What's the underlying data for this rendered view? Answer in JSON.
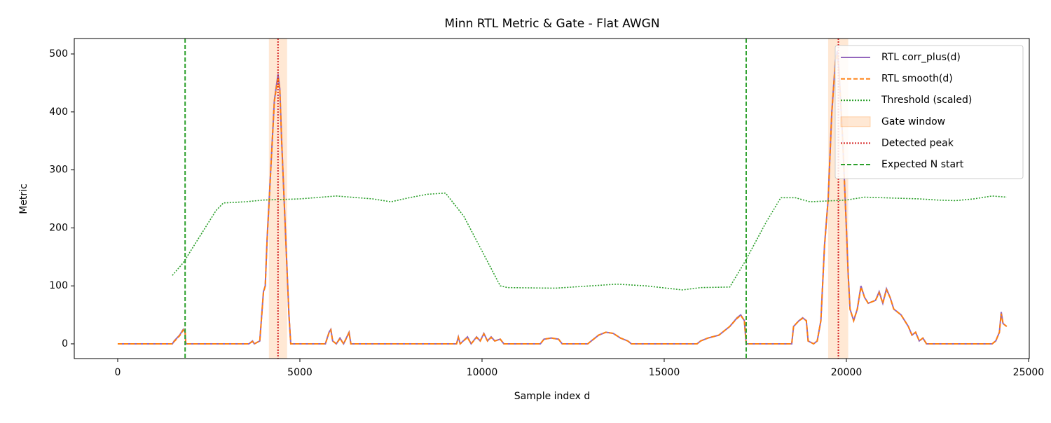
{
  "chart_data": {
    "type": "line",
    "title": "Minn RTL Metric & Gate - Flat AWGN",
    "x_label": "Sample index d",
    "y_label": "Metric",
    "xlim": [
      -1192,
      25020
    ],
    "ylim": [
      -25.4,
      526.6
    ],
    "xticks": [
      0,
      5000,
      10000,
      15000,
      20000,
      25000
    ],
    "yticks": [
      0,
      100,
      200,
      300,
      400,
      500
    ],
    "legend": "upper right",
    "series": [
      {
        "name": "RTL corr_plus(d)",
        "kind": "line",
        "color": "#9467bd",
        "dash": "solid",
        "x": [
          0,
          1500,
          1550,
          1700,
          1800,
          1850,
          1870,
          3600,
          3700,
          3750,
          3900,
          4000,
          4050,
          4100,
          4200,
          4300,
          4400,
          4450,
          4500,
          4600,
          4700,
          4750,
          5700,
          5800,
          5850,
          5900,
          6000,
          6100,
          6200,
          6350,
          6400,
          9300,
          9350,
          9400,
          9600,
          9700,
          9850,
          9950,
          10050,
          10150,
          10250,
          10350,
          10500,
          10600,
          11600,
          11700,
          11900,
          12100,
          12200,
          12900,
          13000,
          13200,
          13400,
          13600,
          13800,
          14000,
          14100,
          15900,
          16000,
          16200,
          16500,
          16800,
          17000,
          17100,
          17200,
          17250,
          18500,
          18550,
          18700,
          18800,
          18900,
          18950,
          19100,
          19200,
          19300,
          19400,
          19500,
          19600,
          19700,
          19750,
          19800,
          19900,
          20000,
          20050,
          20100,
          20200,
          20300,
          20400,
          20500,
          20600,
          20800,
          20900,
          21000,
          21100,
          21200,
          21300,
          21500,
          21700,
          21800,
          21900,
          22000,
          22100,
          22200,
          24000,
          24100,
          24200,
          24250,
          24300,
          24400
        ],
        "values": [
          0,
          0,
          5,
          15,
          25,
          20,
          0,
          0,
          5,
          0,
          5,
          90,
          100,
          180,
          300,
          420,
          465,
          440,
          350,
          200,
          50,
          0,
          0,
          20,
          25,
          5,
          0,
          10,
          0,
          20,
          0,
          0,
          12,
          0,
          12,
          0,
          12,
          5,
          18,
          5,
          12,
          5,
          8,
          0,
          0,
          8,
          10,
          8,
          0,
          0,
          5,
          15,
          20,
          18,
          10,
          5,
          0,
          0,
          5,
          10,
          15,
          30,
          45,
          50,
          40,
          0,
          0,
          30,
          40,
          45,
          40,
          5,
          0,
          5,
          40,
          170,
          250,
          400,
          490,
          505,
          470,
          350,
          200,
          120,
          60,
          40,
          60,
          100,
          80,
          70,
          75,
          90,
          70,
          95,
          80,
          60,
          50,
          30,
          15,
          20,
          5,
          10,
          0,
          0,
          5,
          20,
          55,
          35,
          30
        ]
      },
      {
        "name": "RTL smooth(d)",
        "kind": "line",
        "color": "#ff7f0e",
        "dash": "dashed",
        "x": [
          0,
          1500,
          1550,
          1700,
          1800,
          1850,
          1870,
          3600,
          3700,
          3750,
          3900,
          4000,
          4050,
          4100,
          4200,
          4300,
          4400,
          4450,
          4500,
          4600,
          4700,
          4750,
          5700,
          5800,
          5850,
          5900,
          6000,
          6100,
          6200,
          6350,
          6400,
          9300,
          9350,
          9400,
          9600,
          9700,
          9850,
          9950,
          10050,
          10150,
          10250,
          10350,
          10500,
          10600,
          11600,
          11700,
          11900,
          12100,
          12200,
          12900,
          13000,
          13200,
          13400,
          13600,
          13800,
          14000,
          14100,
          15900,
          16000,
          16200,
          16500,
          16800,
          17000,
          17100,
          17200,
          17250,
          18500,
          18550,
          18700,
          18800,
          18900,
          18950,
          19100,
          19200,
          19300,
          19400,
          19500,
          19600,
          19700,
          19750,
          19800,
          19900,
          20000,
          20050,
          20100,
          20200,
          20300,
          20400,
          20500,
          20600,
          20800,
          20900,
          21000,
          21100,
          21200,
          21300,
          21500,
          21700,
          21800,
          21900,
          22000,
          22100,
          22200,
          24000,
          24100,
          24200,
          24250,
          24300,
          24400
        ],
        "values": [
          0,
          0,
          4,
          14,
          24,
          20,
          0,
          0,
          4,
          0,
          5,
          88,
          100,
          178,
          298,
          418,
          460,
          438,
          350,
          200,
          50,
          0,
          0,
          19,
          24,
          5,
          0,
          9,
          0,
          19,
          0,
          0,
          11,
          0,
          11,
          0,
          11,
          5,
          17,
          5,
          11,
          5,
          8,
          0,
          0,
          8,
          10,
          8,
          0,
          0,
          5,
          15,
          20,
          18,
          10,
          5,
          0,
          0,
          5,
          10,
          15,
          30,
          44,
          49,
          40,
          0,
          0,
          30,
          40,
          44,
          40,
          5,
          0,
          5,
          40,
          168,
          250,
          398,
          488,
          500,
          468,
          350,
          200,
          120,
          60,
          40,
          60,
          98,
          80,
          70,
          75,
          88,
          70,
          93,
          80,
          60,
          50,
          30,
          15,
          20,
          5,
          10,
          0,
          0,
          5,
          20,
          52,
          35,
          30
        ]
      },
      {
        "name": "Threshold (scaled)",
        "kind": "line",
        "color": "#2ca02c",
        "dash": "dotted",
        "x": [
          1500,
          1800,
          2300,
          2700,
          2900,
          3500,
          4000,
          5000,
          6000,
          7000,
          7500,
          8000,
          8500,
          9000,
          9500,
          10000,
          10500,
          10700,
          12000,
          13000,
          13700,
          14500,
          15500,
          16000,
          16800,
          17200,
          17800,
          18200,
          18600,
          19000,
          20000,
          20500,
          21000,
          22000,
          22500,
          23000,
          23500,
          24000,
          24400
        ],
        "values": [
          118,
          140,
          190,
          230,
          243,
          245,
          248,
          250,
          255,
          250,
          245,
          252,
          258,
          260,
          220,
          160,
          100,
          97,
          96,
          100,
          103,
          100,
          93,
          97,
          98,
          140,
          210,
          252,
          252,
          245,
          248,
          253,
          252,
          250,
          248,
          247,
          250,
          255,
          253
        ]
      },
      {
        "name": "Gate window",
        "kind": "span",
        "color": "#ff7f0e",
        "spans": [
          [
            4150,
            4650
          ],
          [
            19500,
            20050
          ]
        ]
      },
      {
        "name": "Detected peak",
        "kind": "vline",
        "color": "#d62728",
        "dash": "dotted",
        "x": [
          4400,
          19780
        ]
      },
      {
        "name": "Expected N start",
        "kind": "vline",
        "color": "#2ca02c",
        "dash": "dashed",
        "x": [
          1850,
          17250
        ]
      }
    ]
  }
}
